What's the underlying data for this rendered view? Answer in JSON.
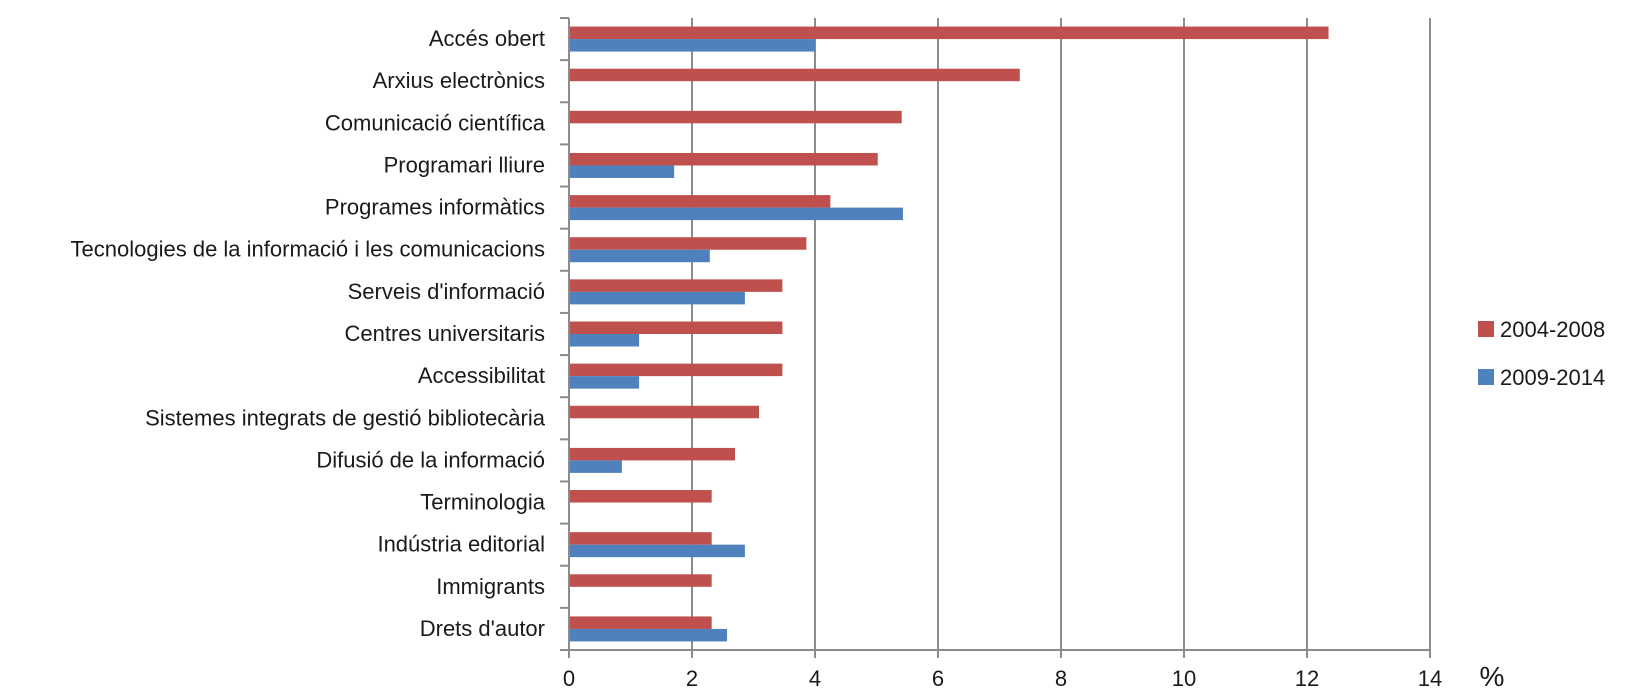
{
  "chart_data": {
    "type": "bar",
    "orientation": "horizontal",
    "categories": [
      "Accés obert",
      "Arxius electrònics",
      "Comunicació científica",
      "Programari lliure",
      "Programes informàtics",
      "Tecnologies de la informació i les comunicacions",
      "Serveis d'informació",
      "Centres universitaris",
      "Accessibilitat",
      "Sistemes integrats de gestió bibliotecària",
      "Difusió de la informació",
      "Terminologia",
      "Indústria editorial",
      "Immigrants",
      "Drets d'autor"
    ],
    "series": [
      {
        "name": "2004-2008",
        "color": "#c0504d",
        "values": [
          12.35,
          7.33,
          5.41,
          5.02,
          4.25,
          3.86,
          3.47,
          3.47,
          3.47,
          3.09,
          2.7,
          2.32,
          2.32,
          2.32,
          2.32
        ]
      },
      {
        "name": "2009-2014",
        "color": "#4f81bd",
        "values": [
          4.0,
          0,
          0,
          1.71,
          5.43,
          2.29,
          2.86,
          1.14,
          1.14,
          0,
          0.86,
          0,
          2.86,
          0,
          2.57
        ]
      }
    ],
    "xlim": [
      0,
      14
    ],
    "xticks": [
      "0",
      "2",
      "4",
      "6",
      "8",
      "10",
      "12",
      "14"
    ],
    "x_unit_label": "%",
    "grid": "vertical",
    "legend_position": "right"
  }
}
